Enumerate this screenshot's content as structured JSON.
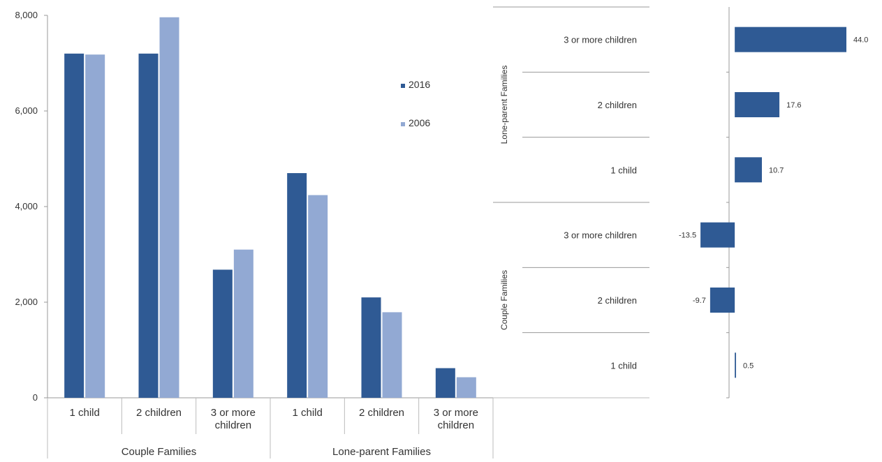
{
  "chart_data": [
    {
      "type": "bar",
      "title": "",
      "xlabel": "",
      "ylabel": "",
      "ylim": [
        0,
        8000
      ],
      "yticks": [
        "0",
        "2,000",
        "4,000",
        "6,000",
        "8,000"
      ],
      "groups": [
        {
          "name": "Couple Families",
          "categories": [
            "1 child",
            "2 children",
            "3 or more children"
          ]
        },
        {
          "name": "Lone-parent Families",
          "categories": [
            "1 child",
            "2 children",
            "3 or more children"
          ]
        }
      ],
      "series": [
        {
          "name": "2016",
          "color": "#2f5a94",
          "values": [
            7200,
            7200,
            2680,
            4700,
            2100,
            620
          ]
        },
        {
          "name": "2006",
          "color": "#92a9d3",
          "values": [
            7180,
            7960,
            3100,
            4240,
            1790,
            430
          ]
        }
      ],
      "legend": "right of plot, upper area",
      "grid": false
    },
    {
      "type": "bar",
      "orientation": "horizontal",
      "title": "",
      "groups": [
        {
          "name": "Lone-parent Families",
          "categories": [
            "3 or more children",
            "2 children",
            "1 child"
          ],
          "values": [
            44.0,
            17.6,
            10.7
          ]
        },
        {
          "name": "Couple Families",
          "categories": [
            "3 or more children",
            "2 children",
            "1 child"
          ],
          "values": [
            -13.5,
            -9.7,
            0.5
          ]
        }
      ],
      "data_labels": [
        "44.0",
        "17.6",
        "10.7",
        "-13.5",
        "-9.7",
        "0.5"
      ],
      "xlim": [
        -16,
        44
      ],
      "color": "#2f5a94",
      "grid": false
    }
  ]
}
